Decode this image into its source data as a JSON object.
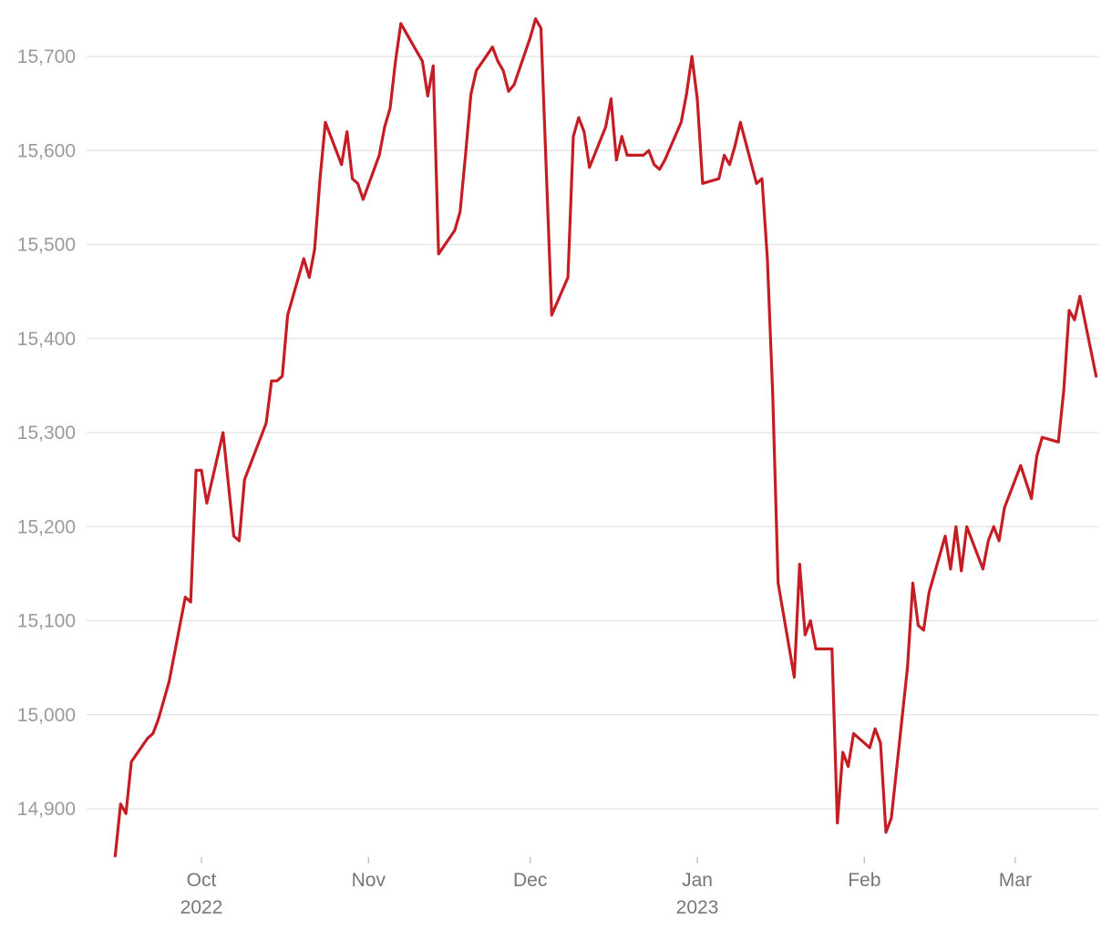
{
  "chart_data": {
    "type": "line",
    "title": "",
    "xlabel": "",
    "ylabel": "",
    "xlim": [
      "2022-09-13",
      "2023-03-13"
    ],
    "ylim": [
      14840,
      15745
    ],
    "y_ticks": [
      14900,
      15000,
      15100,
      15200,
      15300,
      15400,
      15500,
      15600,
      15700
    ],
    "y_tick_labels": [
      "14,900",
      "15,000",
      "15,100",
      "15,200",
      "15,300",
      "15,400",
      "15,500",
      "15,600",
      "15,700"
    ],
    "x_ticks": [
      {
        "date": "2022-10-01",
        "label": "Oct",
        "sublabel": "2022"
      },
      {
        "date": "2022-11-01",
        "label": "Nov",
        "sublabel": ""
      },
      {
        "date": "2022-12-01",
        "label": "Dec",
        "sublabel": ""
      },
      {
        "date": "2023-01-01",
        "label": "Jan",
        "sublabel": "2023"
      },
      {
        "date": "2023-02-01",
        "label": "Feb",
        "sublabel": ""
      },
      {
        "date": "2023-03-01",
        "label": "Mar",
        "sublabel": ""
      }
    ],
    "grid": true,
    "colors": {
      "line": "#c41e24",
      "grid": "#e2e2e2"
    },
    "series": [
      {
        "points": [
          [
            "2022-09-15",
            14850
          ],
          [
            "2022-09-16",
            14905
          ],
          [
            "2022-09-17",
            14895
          ],
          [
            "2022-09-18",
            14950
          ],
          [
            "2022-09-21",
            14975
          ],
          [
            "2022-09-22",
            14980
          ],
          [
            "2022-09-23",
            14995
          ],
          [
            "2022-09-25",
            15035
          ],
          [
            "2022-09-28",
            15125
          ],
          [
            "2022-09-29",
            15120
          ],
          [
            "2022-09-30",
            15260
          ],
          [
            "2022-10-01",
            15260
          ],
          [
            "2022-10-02",
            15225
          ],
          [
            "2022-10-05",
            15300
          ],
          [
            "2022-10-07",
            15190
          ],
          [
            "2022-10-08",
            15185
          ],
          [
            "2022-10-09",
            15250
          ],
          [
            "2022-10-13",
            15310
          ],
          [
            "2022-10-14",
            15355
          ],
          [
            "2022-10-15",
            15355
          ],
          [
            "2022-10-16",
            15360
          ],
          [
            "2022-10-17",
            15425
          ],
          [
            "2022-10-20",
            15485
          ],
          [
            "2022-10-21",
            15465
          ],
          [
            "2022-10-22",
            15495
          ],
          [
            "2022-10-23",
            15570
          ],
          [
            "2022-10-24",
            15630
          ],
          [
            "2022-10-27",
            15585
          ],
          [
            "2022-10-28",
            15620
          ],
          [
            "2022-10-29",
            15570
          ],
          [
            "2022-10-30",
            15565
          ],
          [
            "2022-10-31",
            15548
          ],
          [
            "2022-11-03",
            15595
          ],
          [
            "2022-11-04",
            15625
          ],
          [
            "2022-11-05",
            15645
          ],
          [
            "2022-11-06",
            15695
          ],
          [
            "2022-11-07",
            15735
          ],
          [
            "2022-11-11",
            15695
          ],
          [
            "2022-11-12",
            15658
          ],
          [
            "2022-11-13",
            15690
          ],
          [
            "2022-11-14",
            15490
          ],
          [
            "2022-11-17",
            15515
          ],
          [
            "2022-11-18",
            15535
          ],
          [
            "2022-11-19",
            15595
          ],
          [
            "2022-11-20",
            15660
          ],
          [
            "2022-11-21",
            15685
          ],
          [
            "2022-11-24",
            15710
          ],
          [
            "2022-11-25",
            15695
          ],
          [
            "2022-11-26",
            15685
          ],
          [
            "2022-11-27",
            15663
          ],
          [
            "2022-11-28",
            15670
          ],
          [
            "2022-12-01",
            15720
          ],
          [
            "2022-12-02",
            15740
          ],
          [
            "2022-12-03",
            15730
          ],
          [
            "2022-12-05",
            15425
          ],
          [
            "2022-12-08",
            15465
          ],
          [
            "2022-12-09",
            15615
          ],
          [
            "2022-12-10",
            15635
          ],
          [
            "2022-12-11",
            15620
          ],
          [
            "2022-12-12",
            15582
          ],
          [
            "2022-12-15",
            15625
          ],
          [
            "2022-12-16",
            15655
          ],
          [
            "2022-12-17",
            15590
          ],
          [
            "2022-12-18",
            15615
          ],
          [
            "2022-12-19",
            15595
          ],
          [
            "2022-12-22",
            15595
          ],
          [
            "2022-12-23",
            15600
          ],
          [
            "2022-12-24",
            15585
          ],
          [
            "2022-12-25",
            15580
          ],
          [
            "2022-12-26",
            15590
          ],
          [
            "2022-12-29",
            15630
          ],
          [
            "2022-12-30",
            15660
          ],
          [
            "2022-12-31",
            15700
          ],
          [
            "2023-01-01",
            15655
          ],
          [
            "2023-01-02",
            15565
          ],
          [
            "2023-01-05",
            15570
          ],
          [
            "2023-01-06",
            15595
          ],
          [
            "2023-01-07",
            15585
          ],
          [
            "2023-01-08",
            15605
          ],
          [
            "2023-01-09",
            15630
          ],
          [
            "2023-01-12",
            15565
          ],
          [
            "2023-01-13",
            15570
          ],
          [
            "2023-01-14",
            15485
          ],
          [
            "2023-01-15",
            15340
          ],
          [
            "2023-01-16",
            15140
          ],
          [
            "2023-01-19",
            15040
          ],
          [
            "2023-01-20",
            15160
          ],
          [
            "2023-01-21",
            15085
          ],
          [
            "2023-01-22",
            15100
          ],
          [
            "2023-01-23",
            15070
          ],
          [
            "2023-01-26",
            15070
          ],
          [
            "2023-01-27",
            14885
          ],
          [
            "2023-01-28",
            14960
          ],
          [
            "2023-01-29",
            14945
          ],
          [
            "2023-01-30",
            14980
          ],
          [
            "2023-02-02",
            14965
          ],
          [
            "2023-02-03",
            14985
          ],
          [
            "2023-02-04",
            14970
          ],
          [
            "2023-02-05",
            14875
          ],
          [
            "2023-02-06",
            14890
          ],
          [
            "2023-02-09",
            15050
          ],
          [
            "2023-02-10",
            15140
          ],
          [
            "2023-02-11",
            15095
          ],
          [
            "2023-02-12",
            15090
          ],
          [
            "2023-02-13",
            15130
          ],
          [
            "2023-02-16",
            15190
          ],
          [
            "2023-02-17",
            15155
          ],
          [
            "2023-02-18",
            15200
          ],
          [
            "2023-02-19",
            15153
          ],
          [
            "2023-02-20",
            15200
          ],
          [
            "2023-02-23",
            15155
          ],
          [
            "2023-02-24",
            15185
          ],
          [
            "2023-02-25",
            15200
          ],
          [
            "2023-02-26",
            15185
          ],
          [
            "2023-02-27",
            15220
          ],
          [
            "2023-03-02",
            15265
          ],
          [
            "2023-03-04",
            15230
          ],
          [
            "2023-03-05",
            15275
          ],
          [
            "2023-03-06",
            15295
          ],
          [
            "2023-03-09",
            15290
          ],
          [
            "2023-03-10",
            15345
          ],
          [
            "2023-03-11",
            15430
          ],
          [
            "2023-03-12",
            15420
          ],
          [
            "2023-03-13",
            15445
          ],
          [
            "2023-03-16",
            15360
          ]
        ]
      }
    ]
  }
}
